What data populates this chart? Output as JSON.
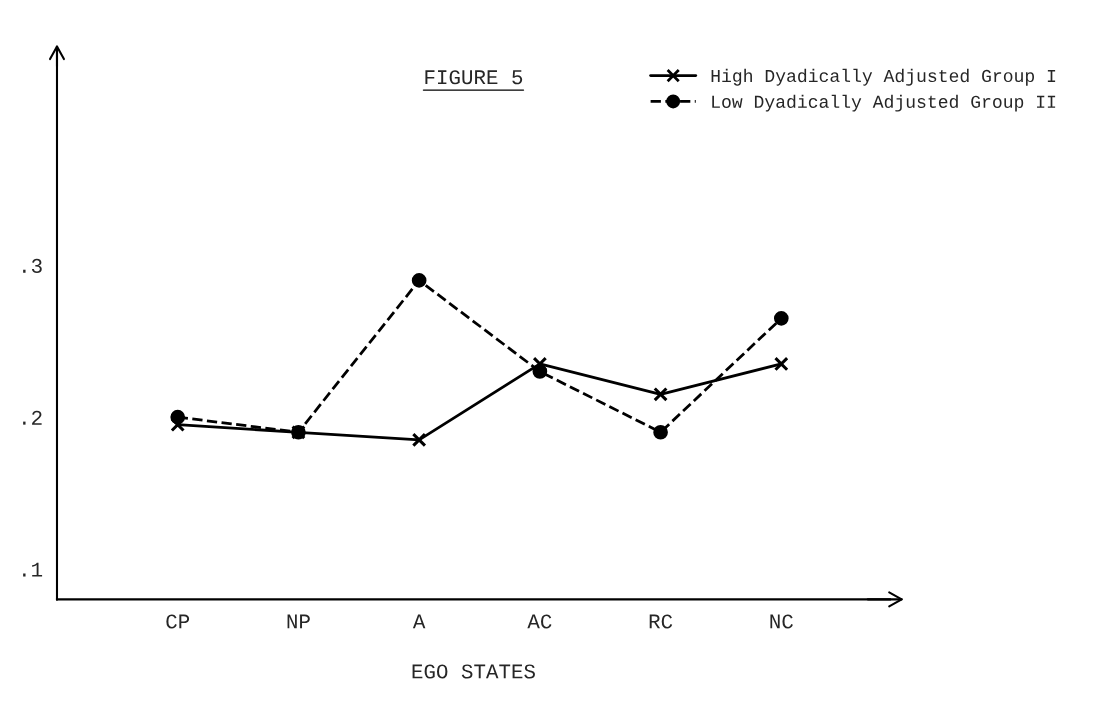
{
  "chart_data": {
    "type": "line",
    "title": "FIGURE 5",
    "xlabel": "EGO STATES",
    "categories": [
      "CP",
      "NP",
      "A",
      "AC",
      "RC",
      "NC"
    ],
    "series": [
      {
        "name": "High Dyadically Adjusted Group I",
        "color": "#000000",
        "marker": "cross",
        "line_style": "solid",
        "values": [
          0.195,
          0.19,
          0.185,
          0.235,
          0.215,
          0.235
        ]
      },
      {
        "name": "Low Dyadically Adjusted Group II",
        "color": "#000000",
        "marker": "circle",
        "line_style": "dashed",
        "values": [
          0.2,
          0.19,
          0.29,
          0.23,
          0.19,
          0.265
        ]
      }
    ],
    "ylim": [
      0.08,
      0.44
    ],
    "yticks": [
      {
        "value": 0.1,
        "label": ".1"
      },
      {
        "value": 0.2,
        "label": ".2"
      },
      {
        "value": 0.3,
        "label": ".3"
      }
    ],
    "grid": false,
    "legend": "top right"
  }
}
